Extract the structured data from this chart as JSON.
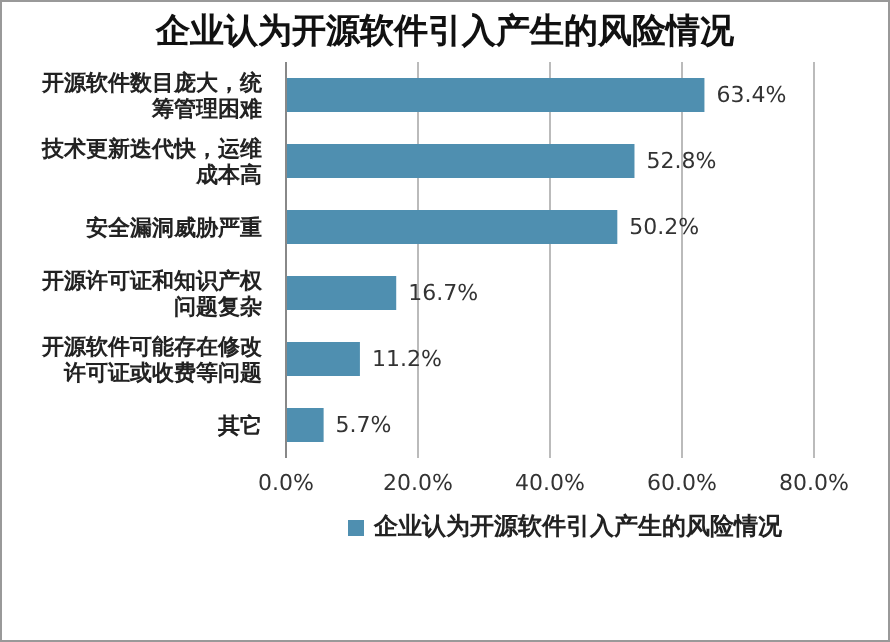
{
  "chart_data": {
    "type": "bar",
    "orientation": "horizontal",
    "title": "企业认为开源软件引入产生的风险情况",
    "categories": [
      "开源软件数目庞大，统筹管理困难",
      "技术更新迭代快，运维成本高",
      "安全漏洞威胁严重",
      "开源许可证和知识产权问题复杂",
      "开源软件可能存在修改许可证或收费等问题",
      "其它"
    ],
    "series": [
      {
        "name": "企业认为开源软件引入产生的风险情况",
        "color": "#4f8fb0",
        "values": [
          63.4,
          52.8,
          50.2,
          16.7,
          11.2,
          5.7
        ],
        "value_labels": [
          "63.4%",
          "52.8%",
          "50.2%",
          "16.7%",
          "11.2%",
          "5.7%"
        ]
      }
    ],
    "xlim": [
      0,
      80
    ],
    "xticks": [
      {
        "value": 0,
        "label": "0.0%"
      },
      {
        "value": 20,
        "label": "20.0%"
      },
      {
        "value": 40,
        "label": "40.0%"
      },
      {
        "value": 60,
        "label": "60.0%"
      },
      {
        "value": 80,
        "label": "80.0%"
      }
    ],
    "grid": "x",
    "legend": "bottom"
  }
}
